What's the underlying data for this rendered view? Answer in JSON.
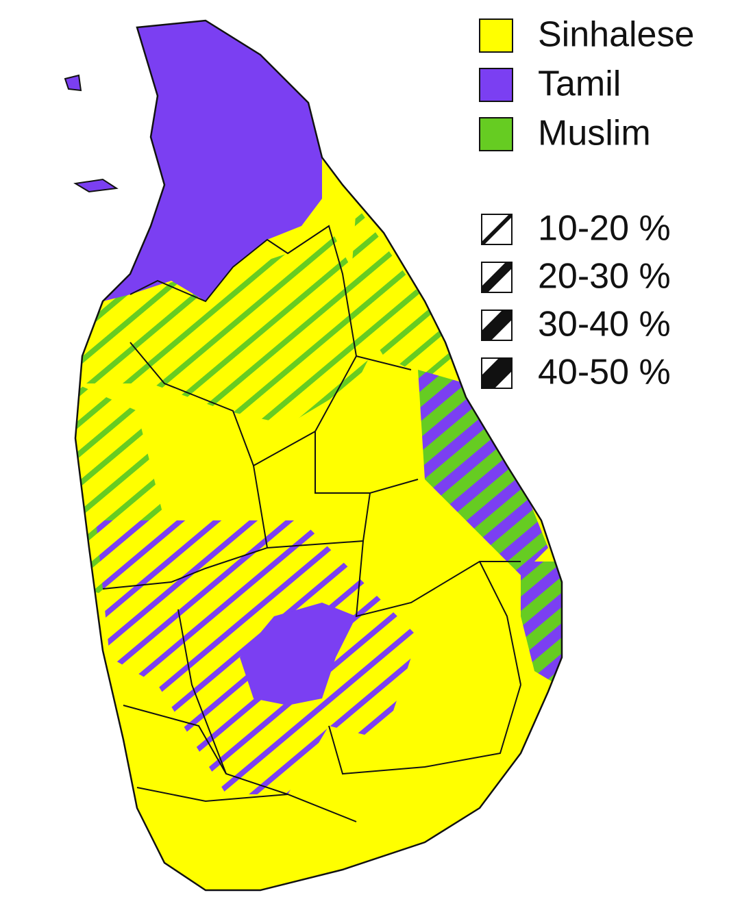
{
  "legend": {
    "groups": [
      {
        "label": "Sinhalese",
        "color": "#ffff00"
      },
      {
        "label": "Tamil",
        "color": "#7b3ff2"
      },
      {
        "label": "Muslim",
        "color": "#66cc22"
      }
    ],
    "shares": [
      {
        "label": "10-20 %"
      },
      {
        "label": "20-30 %"
      },
      {
        "label": "30-40 %"
      },
      {
        "label": "40-50 %"
      }
    ]
  }
}
